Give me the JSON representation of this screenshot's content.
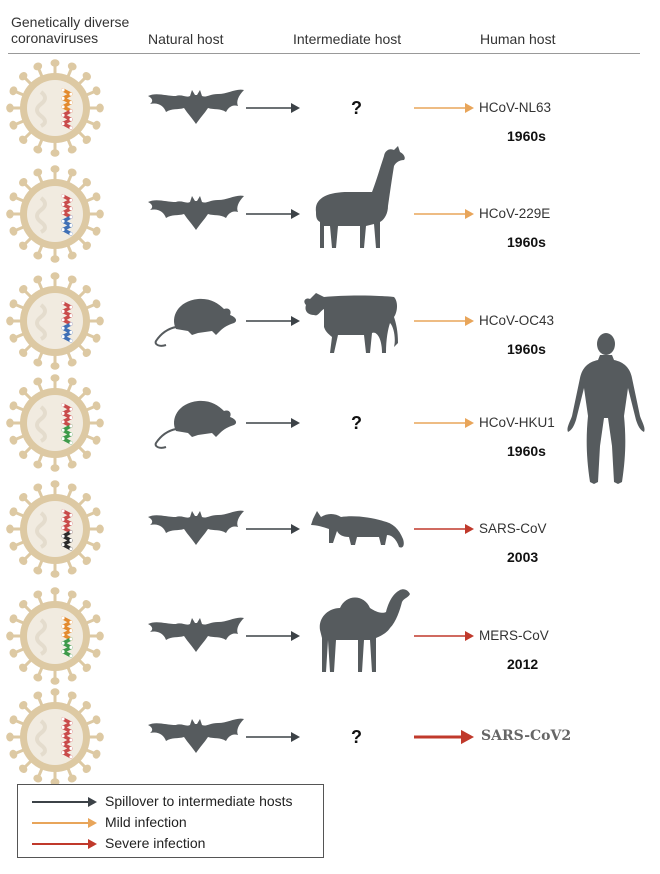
{
  "headers": {
    "col1": "Genetically diverse coronaviruses",
    "col2": "Natural host",
    "col3": "Intermediate host",
    "col4": "Human host"
  },
  "colors": {
    "spillover": "#3c4247",
    "mild": "#e8a55a",
    "severe": "#c0392b",
    "silhouette": "#565b5e",
    "virus_ring": "#ddc9a3",
    "virus_core": "#f1ebe0"
  },
  "rows": [
    {
      "natural_host": "bat",
      "intermediate": "?",
      "name": "HCoV-NL63",
      "year": "1960s",
      "severity": "mild",
      "gene_colors": [
        "#e38a2e",
        "#c94b4b"
      ]
    },
    {
      "natural_host": "bat",
      "intermediate": "alpaca",
      "name": "HCoV-229E",
      "year": "1960s",
      "severity": "mild",
      "gene_colors": [
        "#c94b4b",
        "#3f6fb5"
      ]
    },
    {
      "natural_host": "rodent",
      "intermediate": "cattle",
      "name": "HCoV-OC43",
      "year": "1960s",
      "severity": "mild",
      "gene_colors": [
        "#c94b4b",
        "#3f6fb5"
      ]
    },
    {
      "natural_host": "rodent",
      "intermediate": "?",
      "name": "HCoV-HKU1",
      "year": "1960s",
      "severity": "mild",
      "gene_colors": [
        "#c94b4b",
        "#3d9a4a"
      ]
    },
    {
      "natural_host": "bat",
      "intermediate": "civet",
      "name": "SARS-CoV",
      "year": "2003",
      "severity": "severe",
      "gene_colors": [
        "#c94b4b",
        "#2b2b2b"
      ]
    },
    {
      "natural_host": "bat",
      "intermediate": "camel",
      "name": "MERS-CoV",
      "year": "2012",
      "severity": "severe",
      "gene_colors": [
        "#e38a2e",
        "#3d9a4a"
      ]
    },
    {
      "natural_host": "bat",
      "intermediate": "?",
      "name": "SARS-CoV2",
      "year": "",
      "severity": "severe",
      "gene_colors": [
        "#c94b4b",
        "#c94b4b"
      ]
    }
  ],
  "human_host_icon": "human-figure-icon",
  "legend": [
    {
      "label": "Spillover to intermediate hosts",
      "color": "#3c4247"
    },
    {
      "label": "Mild infection",
      "color": "#e8a55a"
    },
    {
      "label": "Severe infection",
      "color": "#c0392b"
    }
  ]
}
